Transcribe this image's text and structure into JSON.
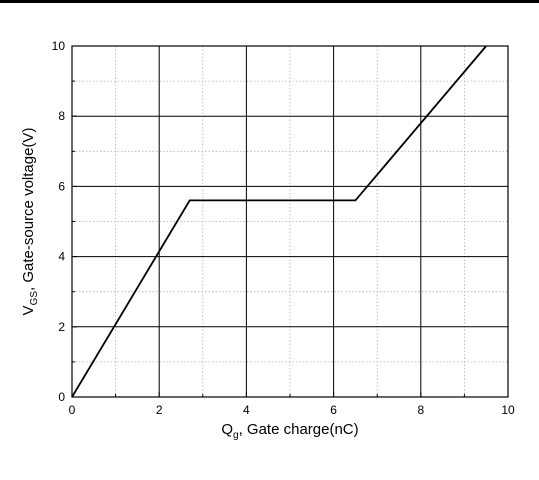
{
  "chart_data": {
    "type": "line",
    "xlabel": {
      "main": "Q",
      "sub": "g",
      "rest": ", Gate charge(nC)"
    },
    "ylabel": {
      "main": "V",
      "sub": "GS",
      "rest": ", Gate-source voltage(V)"
    },
    "xlim": [
      0,
      10
    ],
    "ylim": [
      0,
      10
    ],
    "xticks": [
      "0",
      "2",
      "4",
      "6",
      "8",
      "10"
    ],
    "yticks": [
      "0",
      "2",
      "4",
      "6",
      "8",
      "10"
    ],
    "grid": true,
    "series": [
      {
        "x": [
          0,
          2.7,
          6.5,
          9.5
        ],
        "y": [
          0,
          5.6,
          5.6,
          10
        ],
        "color": "#000000"
      }
    ]
  }
}
